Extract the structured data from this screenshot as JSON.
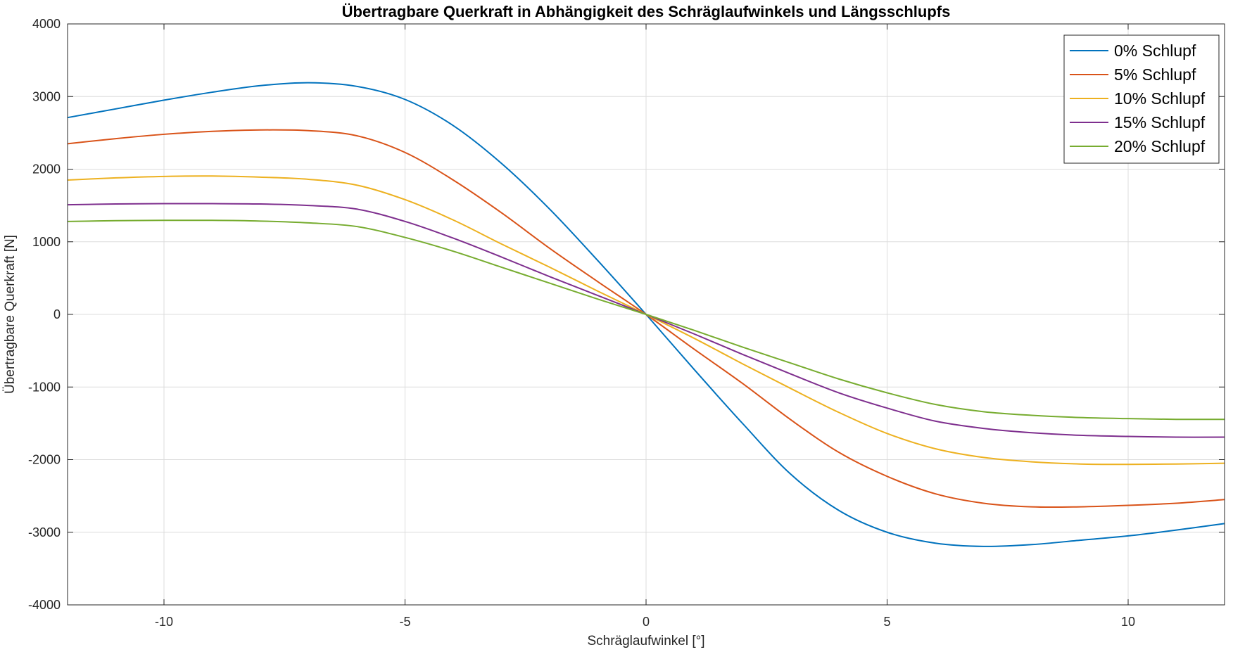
{
  "chart_data": {
    "type": "line",
    "title": "Übertragbare Querkraft in Abhängigkeit des Schräglaufwinkels und Längsschlupfs",
    "xlabel": "Schräglaufwinkel [°]",
    "ylabel": "Übertragbare Querkraft [N]",
    "xlim": [
      -12,
      12
    ],
    "ylim": [
      -4000,
      4000
    ],
    "xticks": [
      -10,
      -5,
      0,
      5,
      10
    ],
    "yticks": [
      -4000,
      -3000,
      -2000,
      -1000,
      0,
      1000,
      2000,
      3000,
      4000
    ],
    "grid": true,
    "legend_position": "top-right",
    "x": [
      -12,
      -11,
      -10,
      -9,
      -8,
      -7,
      -6,
      -5,
      -4,
      -3,
      -2,
      -1,
      0,
      1,
      2,
      3,
      4,
      5,
      6,
      7,
      8,
      9,
      10,
      11,
      12
    ],
    "series": [
      {
        "name": "0% Schlupf",
        "color": "#0072BD",
        "values": [
          2710,
          2830,
          2950,
          3060,
          3150,
          3190,
          3140,
          2960,
          2600,
          2080,
          1450,
          740,
          0,
          -760,
          -1500,
          -2200,
          -2700,
          -3000,
          -3150,
          -3195,
          -3170,
          -3110,
          -3050,
          -2970,
          -2880
        ]
      },
      {
        "name": "5% Schlupf",
        "color": "#D95319",
        "values": [
          2350,
          2420,
          2480,
          2520,
          2540,
          2530,
          2460,
          2230,
          1850,
          1400,
          910,
          450,
          0,
          -480,
          -950,
          -1450,
          -1900,
          -2230,
          -2470,
          -2600,
          -2650,
          -2650,
          -2630,
          -2600,
          -2550
        ]
      },
      {
        "name": "10% Schlupf",
        "color": "#EDB120",
        "values": [
          1850,
          1880,
          1900,
          1905,
          1890,
          1860,
          1780,
          1580,
          1300,
          970,
          650,
          320,
          0,
          -330,
          -680,
          -1020,
          -1350,
          -1640,
          -1850,
          -1970,
          -2030,
          -2060,
          -2065,
          -2060,
          -2050
        ]
      },
      {
        "name": "15% Schlupf",
        "color": "#7E2F8E",
        "values": [
          1510,
          1520,
          1525,
          1525,
          1520,
          1500,
          1450,
          1280,
          1050,
          790,
          520,
          260,
          0,
          -270,
          -550,
          -820,
          -1080,
          -1290,
          -1470,
          -1570,
          -1630,
          -1665,
          -1680,
          -1690,
          -1690
        ]
      },
      {
        "name": "20% Schlupf",
        "color": "#77AC30",
        "values": [
          1280,
          1290,
          1295,
          1295,
          1285,
          1260,
          1210,
          1060,
          870,
          650,
          430,
          210,
          0,
          -220,
          -450,
          -670,
          -890,
          -1080,
          -1240,
          -1340,
          -1390,
          -1420,
          -1435,
          -1445,
          -1445
        ]
      }
    ]
  }
}
